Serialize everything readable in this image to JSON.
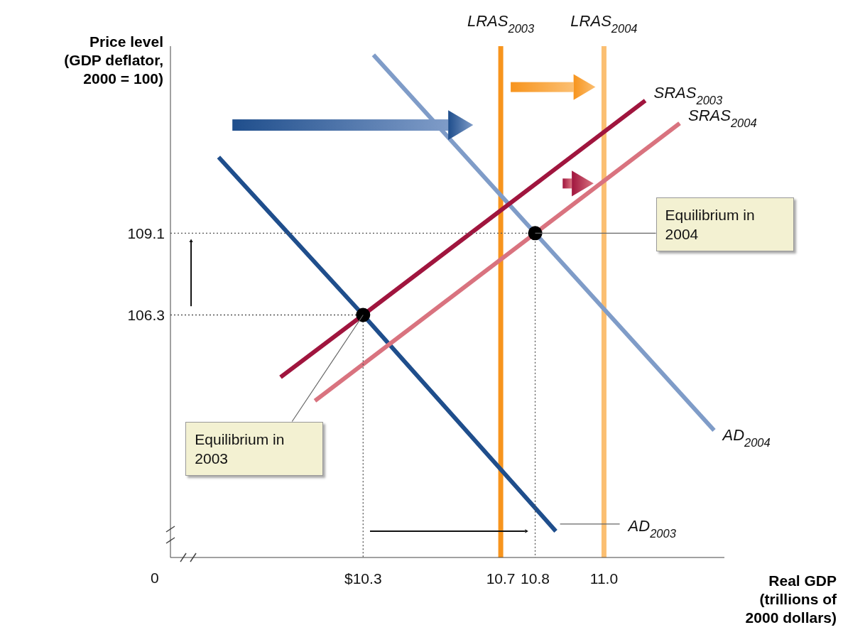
{
  "chart_data": {
    "type": "line",
    "ylabel": "Price level\n(GDP deflator,\n2000 = 100)",
    "xlabel": "Real GDP\n(trillions of\n2000 dollars)",
    "xlim": [
      9.74,
      11.35
    ],
    "ylim": [
      98,
      115.5
    ],
    "xticks": [
      {
        "value": 10.3,
        "label": "$10.3"
      },
      10.7,
      10.8,
      {
        "value": 11,
        "label": "11.0"
      }
    ],
    "yticks": [
      106.3,
      109.1
    ],
    "series": [
      {
        "name": "AD$_{2003}$",
        "color": "#1f4e8c",
        "x": [
          9.88,
          10.3,
          10.86
        ],
        "values": [
          111.7,
          106.3,
          98.9
        ]
      },
      {
        "name": "AD$_{2004}$",
        "color": "#7f9cc8",
        "x": [
          10.33,
          11.32
        ],
        "values": [
          115.2,
          102.35
        ]
      },
      {
        "name": "SRAS$_{2003}$",
        "color": "#a0153e",
        "x": [
          10.06,
          10.3,
          11.12
        ],
        "values": [
          104.17,
          106.3,
          113.64
        ]
      },
      {
        "name": "SRAS$_{2004}$",
        "color": "#d9737f",
        "x": [
          10.16,
          11.22
        ],
        "values": [
          103.36,
          112.86
        ]
      },
      {
        "type": "line",
        "line_style": "dotted",
        "color": "#555555",
        "x": [
          9.74,
          10.3,
          10.3
        ],
        "values": [
          106.3,
          106.3,
          98
        ]
      },
      {
        "type": "line",
        "line_style": "dotted",
        "color": "#555555",
        "x": [
          9.74,
          10.8,
          10.8
        ],
        "values": [
          109.1,
          109.1,
          98
        ]
      },
      {
        "type": "scatter",
        "marker": "circle",
        "color": "#000000",
        "x": [
          10.3,
          10.8
        ],
        "values": [
          106.3,
          109.1
        ]
      }
    ],
    "ref_lines": [
      {
        "axis": "x",
        "value": 10.7,
        "label": "LRAS$_{2003}$",
        "color": "#f7941d"
      },
      {
        "axis": "x",
        "value": 11,
        "label": "LRAS$_{2004}$",
        "color": "#fbbf72"
      }
    ],
    "annotations": [
      "0",
      {
        "text": "Equilibrium in 2003",
        "x": 10.3,
        "y": 106.3
      },
      {
        "text": "Equilibrium in 2004",
        "x": 10.8,
        "y": 109.1
      }
    ]
  }
}
